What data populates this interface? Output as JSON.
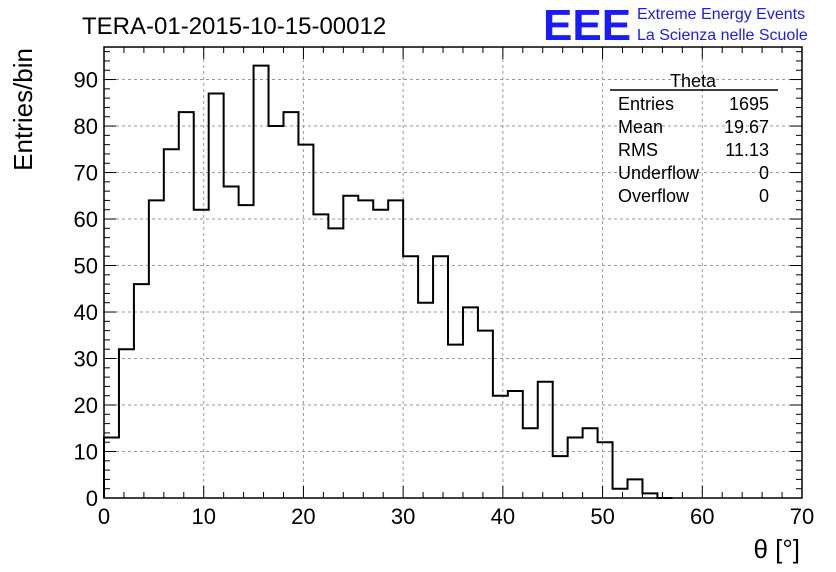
{
  "header": {
    "run_title": "TERA-01-2015-10-15-00012",
    "logo_text": "EEE",
    "logo_line1": "Extreme Energy Events",
    "logo_line2": "La Scienza nelle Scuole",
    "logo_color": "#1a1aff"
  },
  "stats": {
    "title": "Theta",
    "rows": [
      {
        "label": "Entries",
        "value": "1695"
      },
      {
        "label": "Mean",
        "value": "19.67"
      },
      {
        "label": "RMS",
        "value": "11.13"
      },
      {
        "label": "Underflow",
        "value": "0"
      },
      {
        "label": "Overflow",
        "value": "0"
      }
    ]
  },
  "chart_data": {
    "type": "histogram",
    "xlabel": "θ [°]",
    "ylabel": "Entries/bin",
    "xlim": [
      0,
      70
    ],
    "ylim": [
      0,
      97
    ],
    "x_major_ticks": [
      0,
      10,
      20,
      30,
      40,
      50,
      60,
      70
    ],
    "y_major_ticks": [
      0,
      10,
      20,
      30,
      40,
      50,
      60,
      70,
      80,
      90
    ],
    "grid": true,
    "bin_width": 1.5,
    "bin_start": 0,
    "values": [
      13,
      32,
      46,
      64,
      75,
      83,
      62,
      87,
      67,
      63,
      93,
      80,
      83,
      76,
      61,
      58,
      65,
      64,
      62,
      64,
      52,
      42,
      52,
      33,
      41,
      36,
      22,
      23,
      15,
      25,
      9,
      13,
      15,
      12,
      2,
      4,
      1,
      0
    ]
  }
}
